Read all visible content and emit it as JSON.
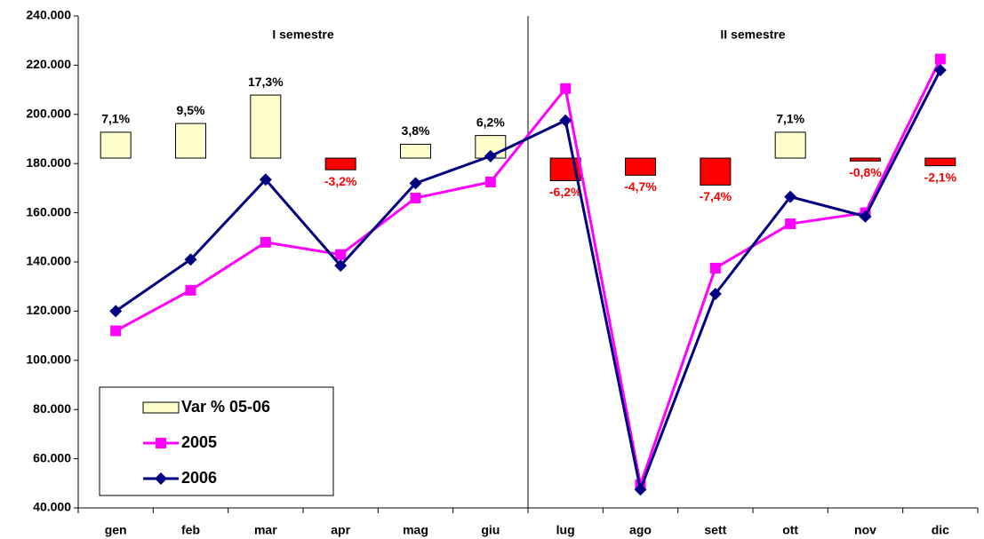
{
  "chart_data": {
    "type": "combo",
    "categories": [
      "gen",
      "feb",
      "mar",
      "apr",
      "mag",
      "giu",
      "lug",
      "ago",
      "sett",
      "ott",
      "nov",
      "dic"
    ],
    "annotations": [
      "I semestre",
      "II semestre"
    ],
    "ylim": [
      40000,
      240000
    ],
    "yticks": [
      {
        "value": 40000,
        "label": "40.000"
      },
      {
        "value": 60000,
        "label": "60.000"
      },
      {
        "value": 80000,
        "label": "80.000"
      },
      {
        "value": 100000,
        "label": "100.000"
      },
      {
        "value": 120000,
        "label": "120.000"
      },
      {
        "value": 140000,
        "label": "140.000"
      },
      {
        "value": 160000,
        "label": "160.000"
      },
      {
        "value": 180000,
        "label": "180.000"
      },
      {
        "value": 200000,
        "label": "200.000"
      },
      {
        "value": 220000,
        "label": "220.000"
      },
      {
        "value": 240000,
        "label": "240.000"
      }
    ],
    "y2lim": [
      -96,
      39
    ],
    "series": [
      {
        "name": "Var % 05-06",
        "type": "bar",
        "axis": "y2",
        "color": "#ffffcc",
        "negative_color": "#ff0000",
        "values": [
          7.1,
          9.5,
          17.3,
          -3.2,
          3.8,
          6.2,
          -6.2,
          -4.7,
          -7.4,
          7.1,
          -0.8,
          -2.1
        ],
        "value_labels": [
          "7,1%",
          "9,5%",
          "17,3%",
          "-3,2%",
          "3,8%",
          "6,2%",
          "-6,2%",
          "-4,7%",
          "-7,4%",
          "7,1%",
          "-0,8%",
          "-2,1%"
        ]
      },
      {
        "name": "2005",
        "type": "line",
        "color": "#ff00ff",
        "marker": "square",
        "values": [
          112000,
          128500,
          148000,
          143000,
          166000,
          172500,
          210500,
          49500,
          137500,
          155500,
          160000,
          222500
        ]
      },
      {
        "name": "2006",
        "type": "line",
        "color": "#000080",
        "marker": "diamond",
        "values": [
          120000,
          141000,
          173500,
          138500,
          172000,
          183000,
          197500,
          47500,
          127000,
          166500,
          158500,
          218000
        ]
      }
    ]
  }
}
